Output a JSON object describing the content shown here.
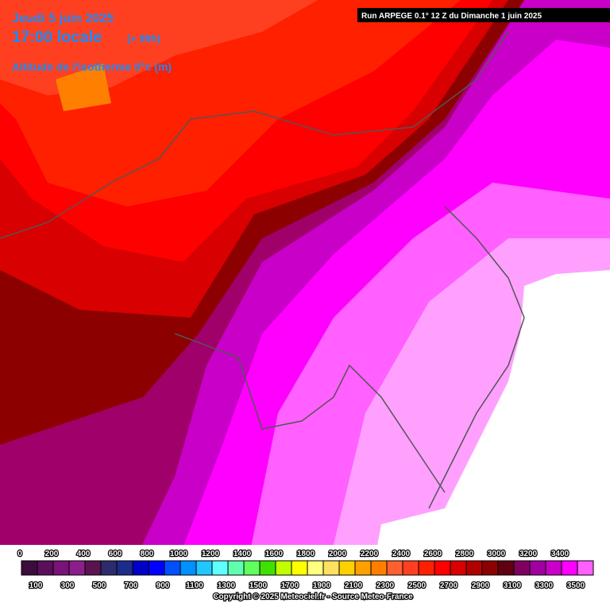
{
  "header": {
    "date": "Jeudi 5 juin 2025",
    "time": "17:00 locale",
    "lead": "(+ 99h)",
    "parameter": "Altitude de l'isotherme 0°c (m)",
    "run": "Run ARPEGE 0.1° 12 Z du Dimanche 1 juin 2025"
  },
  "legend": {
    "labels": [
      0,
      100,
      200,
      300,
      400,
      500,
      600,
      700,
      800,
      900,
      1000,
      1100,
      1200,
      1300,
      1400,
      1500,
      1600,
      1700,
      1800,
      1900,
      2000,
      2100,
      2200,
      2300,
      2400,
      2500,
      2600,
      2700,
      2800,
      2900,
      3000,
      3100,
      3200,
      3300,
      3400,
      3500
    ],
    "colors": [
      "#3c0c3c",
      "#5a0f5a",
      "#781478",
      "#8c1e8c",
      "#5a1450",
      "#2c2c6c",
      "#1c2c8c",
      "#0000c8",
      "#0000ff",
      "#0050ff",
      "#0090ff",
      "#20c8ff",
      "#60ffff",
      "#60ffb0",
      "#60ff60",
      "#40e000",
      "#c0ff00",
      "#ffff00",
      "#ffff80",
      "#ffe060",
      "#ffd000",
      "#ffa000",
      "#ff8000",
      "#ff6030",
      "#ff4020",
      "#ff2000",
      "#ff0000",
      "#d80000",
      "#b00000",
      "#8c0000",
      "#600010",
      "#800060",
      "#a000a0",
      "#c800c8",
      "#ff00ff",
      "#ff60ff"
    ]
  },
  "footer": {
    "copyright": "Copyright © 2025 Meteociel.fr - Source Meteo-France"
  }
}
